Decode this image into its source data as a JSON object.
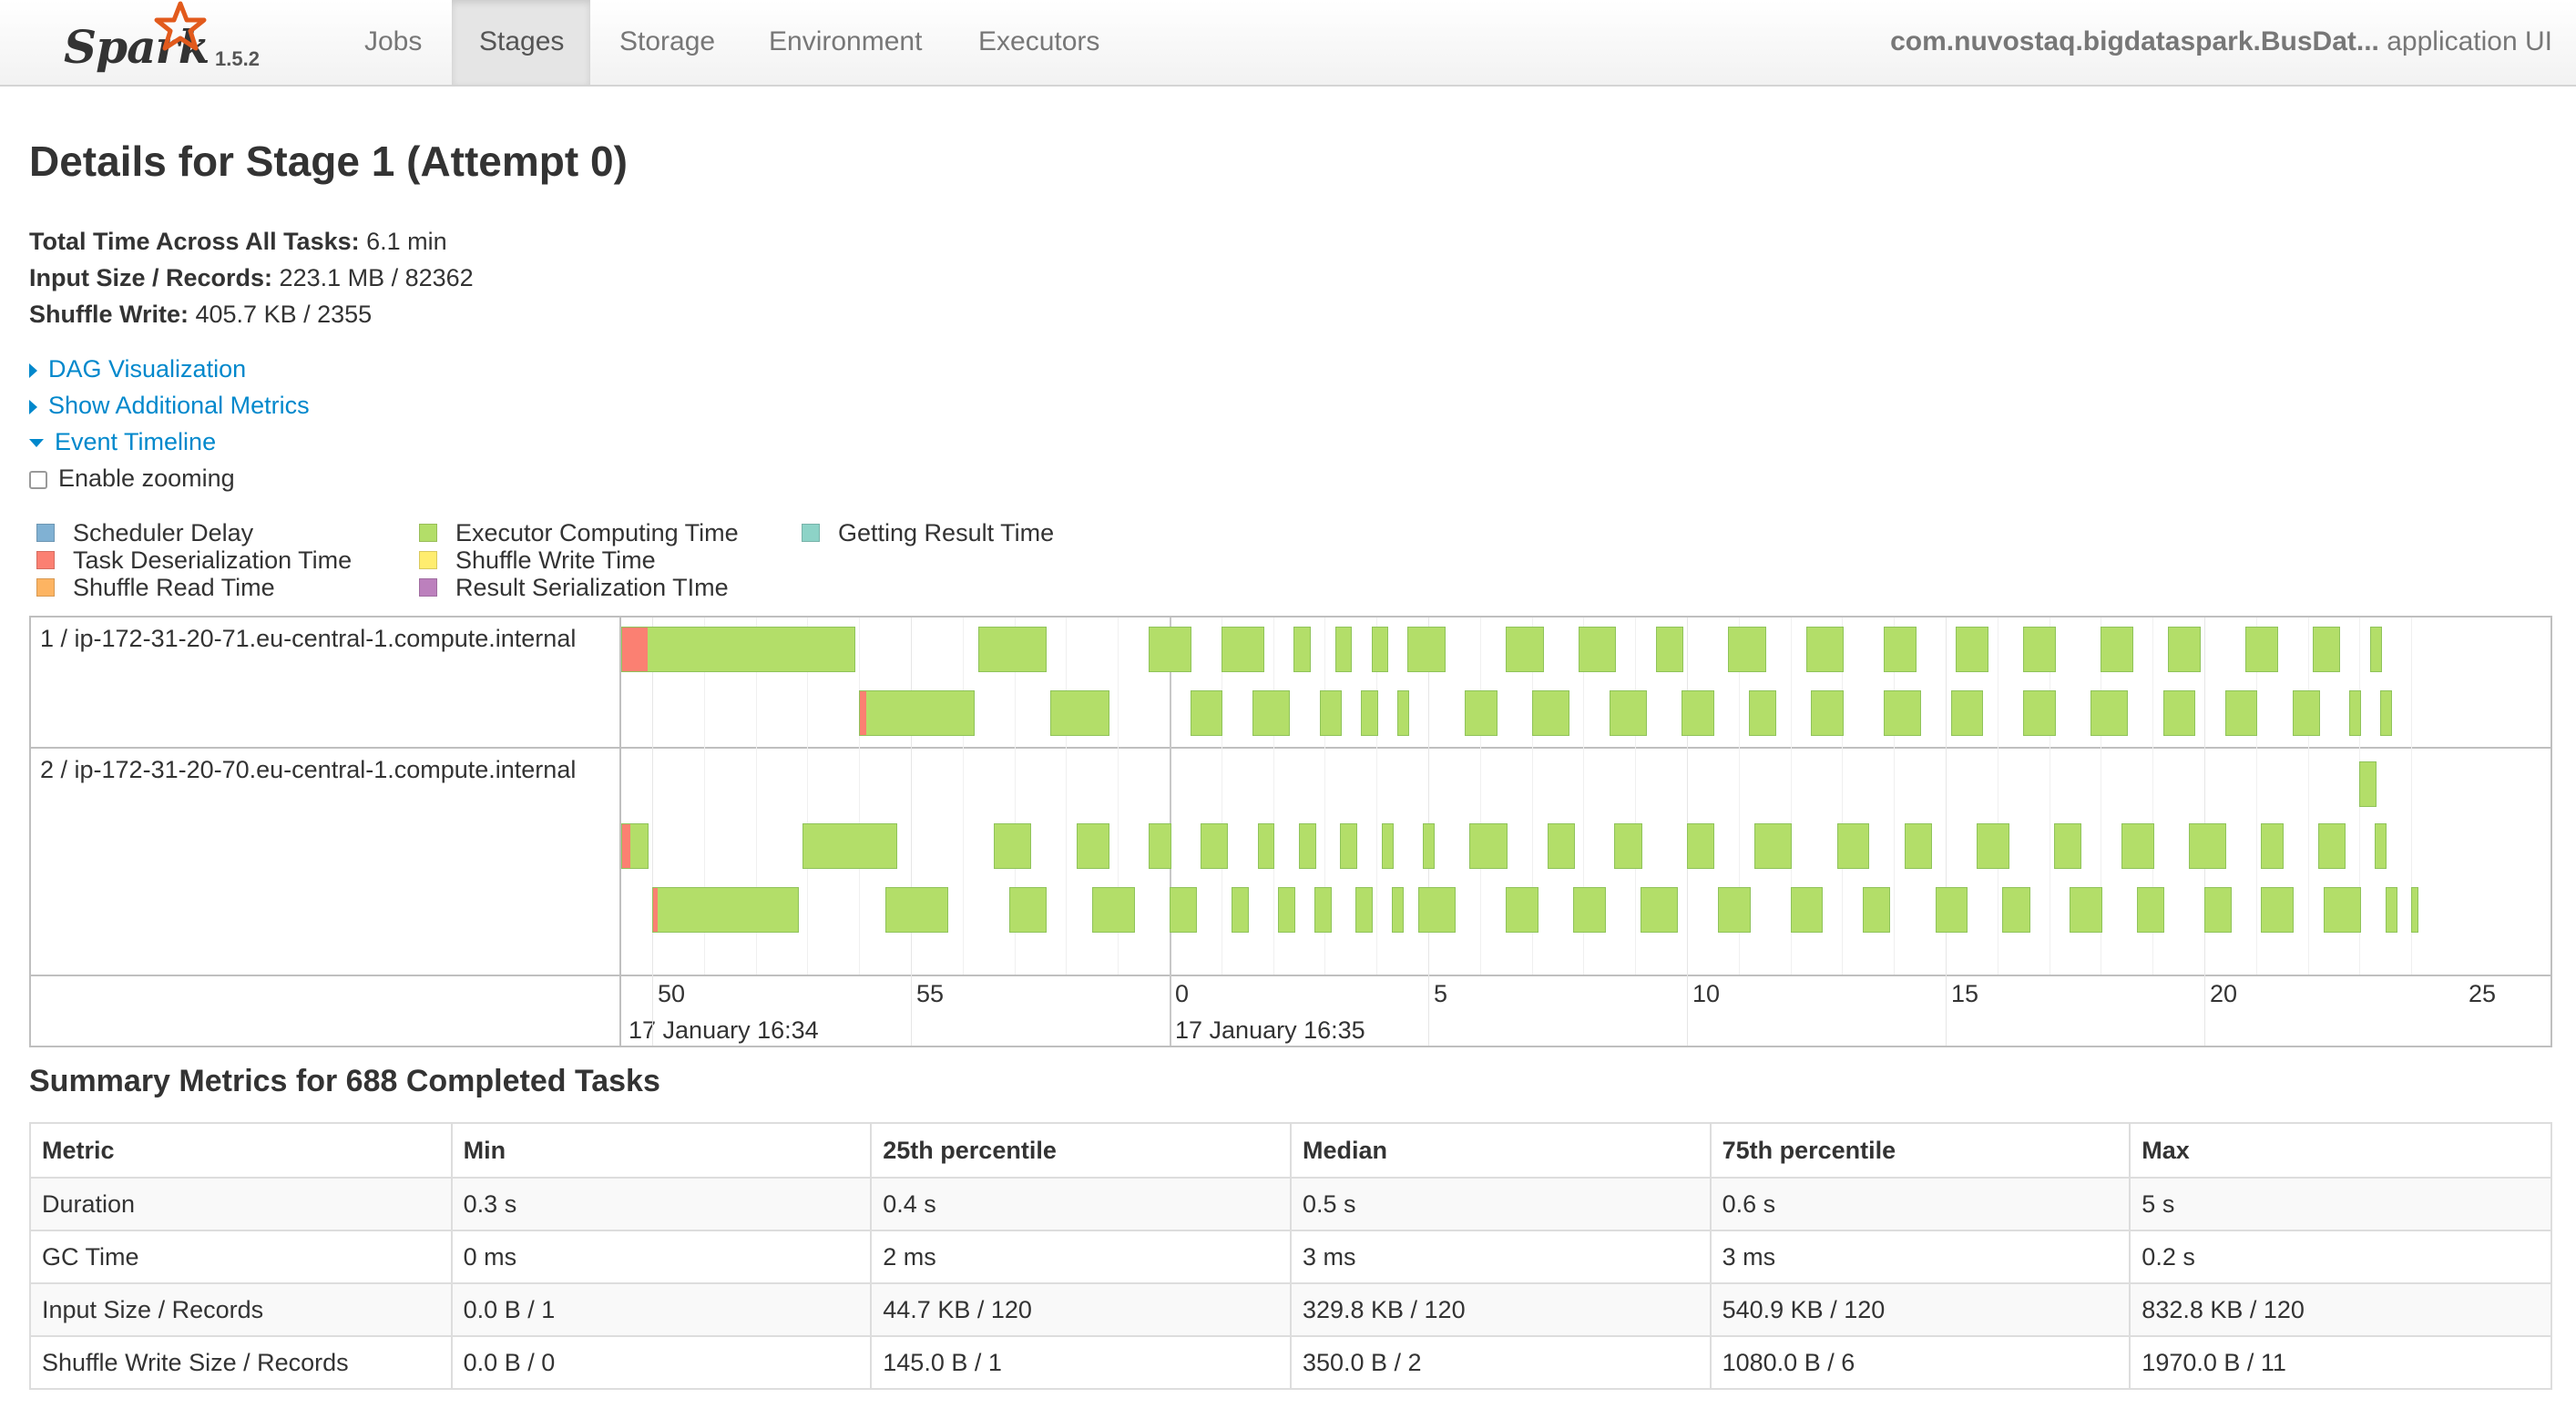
{
  "navbar": {
    "brand": "Spark",
    "version": "1.5.2",
    "tabs": [
      {
        "label": "Jobs",
        "active": false
      },
      {
        "label": "Stages",
        "active": true
      },
      {
        "label": "Storage",
        "active": false
      },
      {
        "label": "Environment",
        "active": false
      },
      {
        "label": "Executors",
        "active": false
      }
    ],
    "app_name": "com.nuvostaq.bigdataspark.BusDat...",
    "app_suffix": " application UI"
  },
  "page": {
    "title": "Details for Stage 1 (Attempt 0)",
    "stats": [
      {
        "label": "Total Time Across All Tasks:",
        "value": " 6.1 min"
      },
      {
        "label": "Input Size / Records:",
        "value": " 223.1 MB / 82362"
      },
      {
        "label": "Shuffle Write:",
        "value": " 405.7 KB / 2355"
      }
    ],
    "links": {
      "dag": "DAG Visualization",
      "metrics": "Show Additional Metrics",
      "timeline": "Event Timeline"
    },
    "zoom_label": "Enable zooming",
    "zoom_checked": false
  },
  "legend": [
    {
      "label": "Scheduler Delay",
      "color": "#80b1d3"
    },
    {
      "label": "Task Deserialization Time",
      "color": "#fb8072"
    },
    {
      "label": "Shuffle Read Time",
      "color": "#fdb462"
    },
    {
      "label": "Executor Computing Time",
      "color": "#b3de69"
    },
    {
      "label": "Shuffle Write Time",
      "color": "#ffed6f"
    },
    {
      "label": "Result Serialization TIme",
      "color": "#bc80bd"
    },
    {
      "label": "Getting Result Time",
      "color": "#8dd3c7"
    }
  ],
  "timeline": {
    "executors": [
      "1 / ip-172-31-20-71.eu-central-1.compute.internal",
      "2 / ip-172-31-20-70.eu-central-1.compute.internal"
    ],
    "ticks": [
      "50",
      "55",
      "0",
      "5",
      "10",
      "15",
      "20",
      "25"
    ],
    "dates": [
      "17 January 16:34",
      "17 January 16:35"
    ],
    "tasks": [
      {
        "executor": 1,
        "lane": 0,
        "start": 49.4,
        "end": 54.0,
        "deser": 0.11
      },
      {
        "executor": 1,
        "lane": 0,
        "start": 56.3,
        "end": 57.7
      },
      {
        "executor": 1,
        "lane": 0,
        "start": 59.6,
        "end": 60.5
      },
      {
        "executor": 1,
        "lane": 0,
        "start": 61.0,
        "end": 61.9
      },
      {
        "executor": 1,
        "lane": 0,
        "start": 62.4,
        "end": 62.8
      },
      {
        "executor": 1,
        "lane": 0,
        "start": 63.2,
        "end": 63.6
      },
      {
        "executor": 1,
        "lane": 0,
        "start": 63.9,
        "end": 64.3
      },
      {
        "executor": 1,
        "lane": 0,
        "start": 64.6,
        "end": 65.4
      },
      {
        "executor": 1,
        "lane": 0,
        "start": 66.5,
        "end": 67.3
      },
      {
        "executor": 1,
        "lane": 0,
        "start": 67.9,
        "end": 68.7
      },
      {
        "executor": 1,
        "lane": 0,
        "start": 69.4,
        "end": 70.0
      },
      {
        "executor": 1,
        "lane": 0,
        "start": 70.8,
        "end": 71.6
      },
      {
        "executor": 1,
        "lane": 0,
        "start": 72.3,
        "end": 73.1
      },
      {
        "executor": 1,
        "lane": 0,
        "start": 73.8,
        "end": 74.5
      },
      {
        "executor": 1,
        "lane": 0,
        "start": 75.2,
        "end": 75.9
      },
      {
        "executor": 1,
        "lane": 0,
        "start": 76.5,
        "end": 77.2
      },
      {
        "executor": 1,
        "lane": 0,
        "start": 78.0,
        "end": 78.7
      },
      {
        "executor": 1,
        "lane": 0,
        "start": 79.3,
        "end": 80.0
      },
      {
        "executor": 1,
        "lane": 0,
        "start": 80.8,
        "end": 81.5
      },
      {
        "executor": 1,
        "lane": 0,
        "start": 82.1,
        "end": 82.7
      },
      {
        "executor": 1,
        "lane": 0,
        "start": 83.2,
        "end": 83.5
      },
      {
        "executor": 1,
        "lane": 1,
        "start": 54.0,
        "end": 56.3,
        "deser": 0.05
      },
      {
        "executor": 1,
        "lane": 1,
        "start": 57.7,
        "end": 58.9
      },
      {
        "executor": 1,
        "lane": 1,
        "start": 60.4,
        "end": 61.1
      },
      {
        "executor": 1,
        "lane": 1,
        "start": 61.6,
        "end": 62.4
      },
      {
        "executor": 1,
        "lane": 1,
        "start": 62.9,
        "end": 63.4
      },
      {
        "executor": 1,
        "lane": 1,
        "start": 63.7,
        "end": 64.1
      },
      {
        "executor": 1,
        "lane": 1,
        "start": 64.4,
        "end": 64.7
      },
      {
        "executor": 1,
        "lane": 1,
        "start": 65.7,
        "end": 66.4
      },
      {
        "executor": 1,
        "lane": 1,
        "start": 67.0,
        "end": 67.8
      },
      {
        "executor": 1,
        "lane": 1,
        "start": 68.5,
        "end": 69.3
      },
      {
        "executor": 1,
        "lane": 1,
        "start": 69.9,
        "end": 70.6
      },
      {
        "executor": 1,
        "lane": 1,
        "start": 71.2,
        "end": 71.8
      },
      {
        "executor": 1,
        "lane": 1,
        "start": 72.4,
        "end": 73.1
      },
      {
        "executor": 1,
        "lane": 1,
        "start": 73.8,
        "end": 74.6
      },
      {
        "executor": 1,
        "lane": 1,
        "start": 75.1,
        "end": 75.8
      },
      {
        "executor": 1,
        "lane": 1,
        "start": 76.5,
        "end": 77.2
      },
      {
        "executor": 1,
        "lane": 1,
        "start": 77.8,
        "end": 78.6
      },
      {
        "executor": 1,
        "lane": 1,
        "start": 79.2,
        "end": 79.9
      },
      {
        "executor": 1,
        "lane": 1,
        "start": 80.4,
        "end": 81.1
      },
      {
        "executor": 1,
        "lane": 1,
        "start": 81.7,
        "end": 82.3
      },
      {
        "executor": 1,
        "lane": 1,
        "start": 82.8,
        "end": 83.1
      },
      {
        "executor": 1,
        "lane": 1,
        "start": 83.4,
        "end": 83.7
      },
      {
        "executor": 2,
        "lane": 0,
        "start": 83.0,
        "end": 83.4
      },
      {
        "executor": 2,
        "lane": 1,
        "start": 49.4,
        "end": 50.0,
        "deser": 0.3
      },
      {
        "executor": 2,
        "lane": 1,
        "start": 52.9,
        "end": 54.8
      },
      {
        "executor": 2,
        "lane": 1,
        "start": 56.6,
        "end": 57.4
      },
      {
        "executor": 2,
        "lane": 1,
        "start": 58.2,
        "end": 58.9
      },
      {
        "executor": 2,
        "lane": 1,
        "start": 59.6,
        "end": 60.1
      },
      {
        "executor": 2,
        "lane": 1,
        "start": 60.6,
        "end": 61.2
      },
      {
        "executor": 2,
        "lane": 1,
        "start": 61.7,
        "end": 62.1
      },
      {
        "executor": 2,
        "lane": 1,
        "start": 62.5,
        "end": 62.9
      },
      {
        "executor": 2,
        "lane": 1,
        "start": 63.3,
        "end": 63.7
      },
      {
        "executor": 2,
        "lane": 1,
        "start": 64.1,
        "end": 64.4
      },
      {
        "executor": 2,
        "lane": 1,
        "start": 64.9,
        "end": 65.2
      },
      {
        "executor": 2,
        "lane": 1,
        "start": 65.8,
        "end": 66.6
      },
      {
        "executor": 2,
        "lane": 1,
        "start": 67.3,
        "end": 67.9
      },
      {
        "executor": 2,
        "lane": 1,
        "start": 68.6,
        "end": 69.2
      },
      {
        "executor": 2,
        "lane": 1,
        "start": 70.0,
        "end": 70.6
      },
      {
        "executor": 2,
        "lane": 1,
        "start": 71.3,
        "end": 72.1
      },
      {
        "executor": 2,
        "lane": 1,
        "start": 72.9,
        "end": 73.6
      },
      {
        "executor": 2,
        "lane": 1,
        "start": 74.2,
        "end": 74.8
      },
      {
        "executor": 2,
        "lane": 1,
        "start": 75.6,
        "end": 76.3
      },
      {
        "executor": 2,
        "lane": 1,
        "start": 77.1,
        "end": 77.7
      },
      {
        "executor": 2,
        "lane": 1,
        "start": 78.4,
        "end": 79.1
      },
      {
        "executor": 2,
        "lane": 1,
        "start": 79.7,
        "end": 80.5
      },
      {
        "executor": 2,
        "lane": 1,
        "start": 81.1,
        "end": 81.6
      },
      {
        "executor": 2,
        "lane": 1,
        "start": 82.2,
        "end": 82.8
      },
      {
        "executor": 2,
        "lane": 1,
        "start": 83.3,
        "end": 83.6
      },
      {
        "executor": 2,
        "lane": 2,
        "start": 50.0,
        "end": 52.9,
        "deser": 0.03
      },
      {
        "executor": 2,
        "lane": 2,
        "start": 54.5,
        "end": 55.8
      },
      {
        "executor": 2,
        "lane": 2,
        "start": 56.9,
        "end": 57.7
      },
      {
        "executor": 2,
        "lane": 2,
        "start": 58.5,
        "end": 59.4
      },
      {
        "executor": 2,
        "lane": 2,
        "start": 60.0,
        "end": 60.6
      },
      {
        "executor": 2,
        "lane": 2,
        "start": 61.2,
        "end": 61.6
      },
      {
        "executor": 2,
        "lane": 2,
        "start": 62.1,
        "end": 62.5
      },
      {
        "executor": 2,
        "lane": 2,
        "start": 62.8,
        "end": 63.2
      },
      {
        "executor": 2,
        "lane": 2,
        "start": 63.6,
        "end": 64.0
      },
      {
        "executor": 2,
        "lane": 2,
        "start": 64.3,
        "end": 64.6
      },
      {
        "executor": 2,
        "lane": 2,
        "start": 64.8,
        "end": 65.6
      },
      {
        "executor": 2,
        "lane": 2,
        "start": 66.5,
        "end": 67.2
      },
      {
        "executor": 2,
        "lane": 2,
        "start": 67.8,
        "end": 68.5
      },
      {
        "executor": 2,
        "lane": 2,
        "start": 69.1,
        "end": 69.9
      },
      {
        "executor": 2,
        "lane": 2,
        "start": 70.6,
        "end": 71.3
      },
      {
        "executor": 2,
        "lane": 2,
        "start": 72.0,
        "end": 72.7
      },
      {
        "executor": 2,
        "lane": 2,
        "start": 73.4,
        "end": 74.0
      },
      {
        "executor": 2,
        "lane": 2,
        "start": 74.8,
        "end": 75.5
      },
      {
        "executor": 2,
        "lane": 2,
        "start": 76.1,
        "end": 76.7
      },
      {
        "executor": 2,
        "lane": 2,
        "start": 77.4,
        "end": 78.1
      },
      {
        "executor": 2,
        "lane": 2,
        "start": 78.7,
        "end": 79.3
      },
      {
        "executor": 2,
        "lane": 2,
        "start": 80.0,
        "end": 80.6
      },
      {
        "executor": 2,
        "lane": 2,
        "start": 81.1,
        "end": 81.8
      },
      {
        "executor": 2,
        "lane": 2,
        "start": 82.3,
        "end": 83.1
      },
      {
        "executor": 2,
        "lane": 2,
        "start": 83.5,
        "end": 83.8
      },
      {
        "executor": 2,
        "lane": 2,
        "start": 84.0,
        "end": 84.2
      }
    ]
  },
  "summary": {
    "title": "Summary Metrics for 688 Completed Tasks",
    "columns": [
      "Metric",
      "Min",
      "25th percentile",
      "Median",
      "75th percentile",
      "Max"
    ],
    "rows": [
      [
        "Duration",
        "0.3 s",
        "0.4 s",
        "0.5 s",
        "0.6 s",
        "5 s"
      ],
      [
        "GC Time",
        "0 ms",
        "2 ms",
        "3 ms",
        "3 ms",
        "0.2 s"
      ],
      [
        "Input Size / Records",
        "0.0 B / 1",
        "44.7 KB / 120",
        "329.8 KB / 120",
        "540.9 KB / 120",
        "832.8 KB / 120"
      ],
      [
        "Shuffle Write Size / Records",
        "0.0 B / 0",
        "145.0 B / 1",
        "350.0 B / 2",
        "1080.0 B / 6",
        "1970.0 B / 11"
      ]
    ]
  }
}
